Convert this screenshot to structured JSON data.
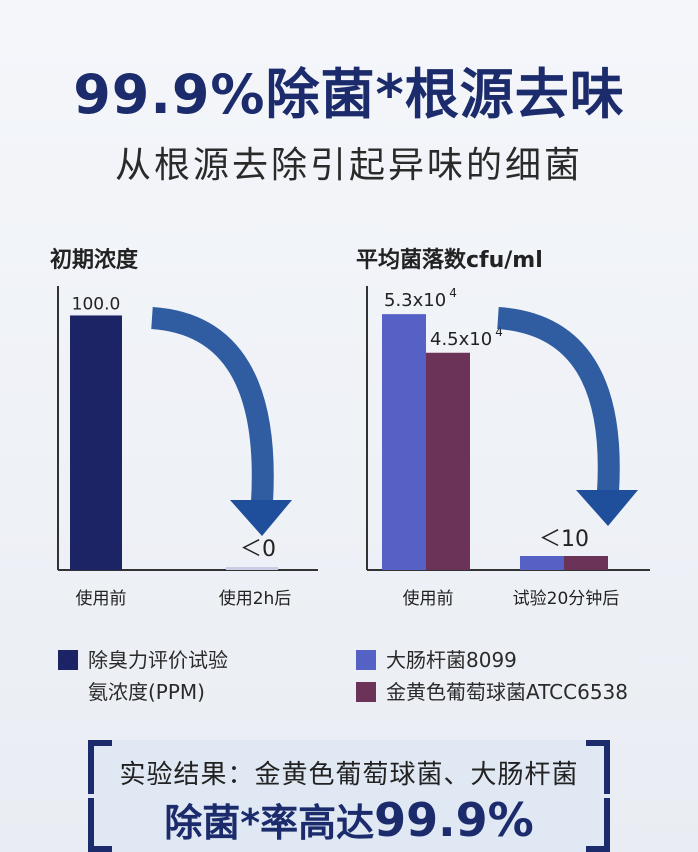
{
  "headline": "99.9%除菌*根源去味",
  "subheadline": "从根源去除引起异味的细菌",
  "colors": {
    "navy": "#1c2466",
    "blue": "#5561c4",
    "plum": "#6b3357",
    "arrow": "#1f4f9a"
  },
  "chart_data": [
    {
      "type": "bar",
      "title": "初期浓度",
      "categories": [
        "使用前",
        "使用2h后"
      ],
      "series": [
        {
          "name": "除臭力评价试验 氨浓度(PPM)",
          "values": [
            100.0,
            0
          ],
          "value_labels": [
            "100.0",
            "＜0"
          ]
        }
      ],
      "legend": [
        "除臭力评价试验",
        "氨浓度(PPM)"
      ],
      "ylim": [
        0,
        110
      ],
      "grid": false
    },
    {
      "type": "bar",
      "title": "平均菌落数cfu/ml",
      "categories": [
        "使用前",
        "试验20分钟后"
      ],
      "series": [
        {
          "name": "大肠杆菌8099",
          "values": [
            53000,
            10
          ],
          "value_labels": [
            "5.3x10",
            "＜10"
          ],
          "label_exponent": "4"
        },
        {
          "name": "金黄色葡萄球菌ATCC6538",
          "values": [
            45000,
            10
          ],
          "value_labels": [
            "4.5x10",
            ""
          ],
          "label_exponent": "4"
        }
      ],
      "ylim": [
        0,
        58000
      ],
      "grid": false
    }
  ],
  "result": {
    "line1": "实验结果：金黄色葡萄球菌、大肠杆菌",
    "line2_prefix": "除菌*率高达",
    "line2_value": "99.9%"
  }
}
